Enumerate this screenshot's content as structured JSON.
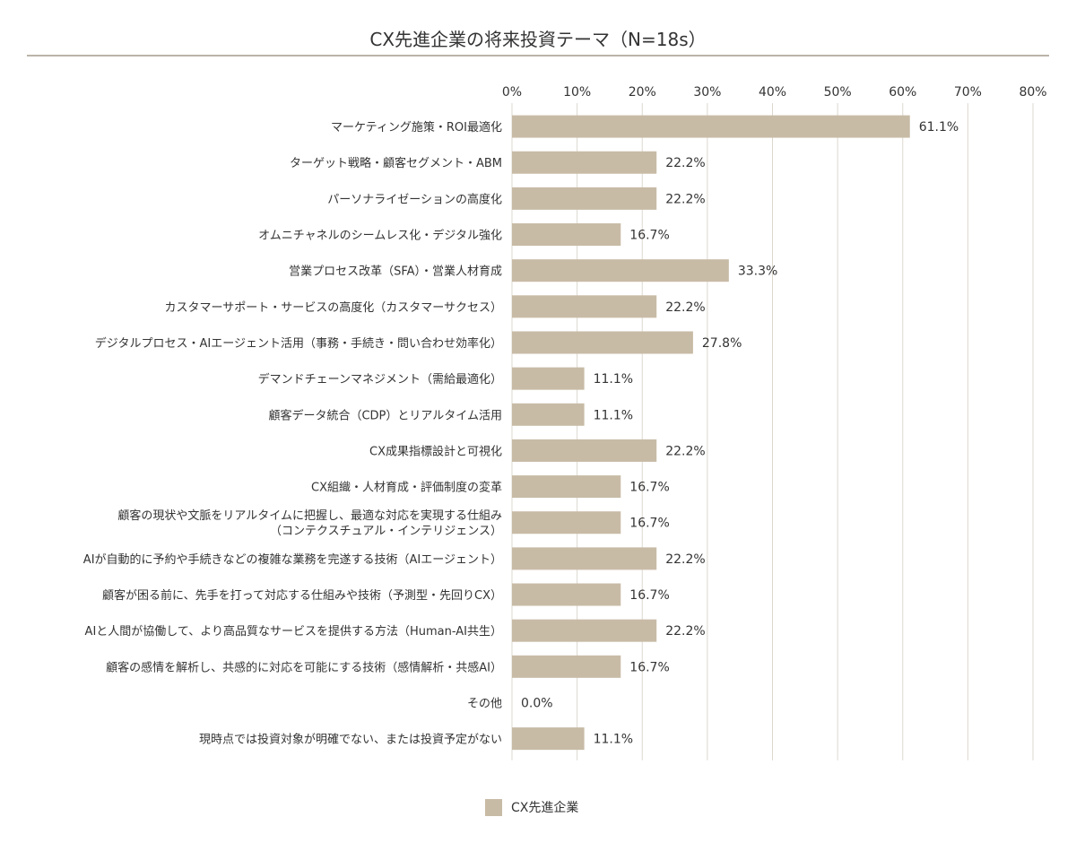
{
  "chart_data": {
    "type": "bar",
    "orientation": "horizontal",
    "title": "CX先進企業の将来投資テーマ（N=18s）",
    "xlim": [
      0,
      80
    ],
    "xticks": [
      "0%",
      "10%",
      "20%",
      "30%",
      "40%",
      "50%",
      "60%",
      "70%",
      "80%"
    ],
    "xtick_values": [
      0,
      10,
      20,
      30,
      40,
      50,
      60,
      70,
      80
    ],
    "grid": true,
    "legend_position": "bottom",
    "bar_color": "#c8bba6",
    "categories": [
      [
        "マーケティング施策・ROI最適化"
      ],
      [
        "ターゲット戦略・顧客セグメント・ABM"
      ],
      [
        "パーソナライゼーションの高度化"
      ],
      [
        "オムニチャネルのシームレス化・デジタル強化"
      ],
      [
        "営業プロセス改革（SFA）・営業人材育成"
      ],
      [
        "カスタマーサポート・サービスの高度化（カスタマーサクセス）"
      ],
      [
        "デジタルプロセス・AIエージェント活用（事務・手続き・問い合わせ効率化）"
      ],
      [
        "デマンドチェーンマネジメント（需給最適化）"
      ],
      [
        "顧客データ統合（CDP）とリアルタイム活用"
      ],
      [
        "CX成果指標設計と可視化"
      ],
      [
        "CX組織・人材育成・評価制度の変革"
      ],
      [
        "顧客の現状や文脈をリアルタイムに把握し、最適な対応を実現する仕組み",
        "（コンテクスチュアル・インテリジェンス）"
      ],
      [
        "AIが自動的に予約や手続きなどの複雑な業務を完遂する技術（AIエージェント）"
      ],
      [
        "顧客が困る前に、先手を打って対応する仕組みや技術（予測型・先回りCX）"
      ],
      [
        "AIと人間が協働して、より高品質なサービスを提供する方法（Human-AI共生）"
      ],
      [
        "顧客の感情を解析し、共感的に対応を可能にする技術（感情解析・共感AI）"
      ],
      [
        "その他"
      ],
      [
        "現時点では投資対象が明確でない、または投資予定がない"
      ]
    ],
    "series": [
      {
        "name": "CX先進企業",
        "values": [
          61.1,
          22.2,
          22.2,
          16.7,
          33.3,
          22.2,
          27.8,
          11.1,
          11.1,
          22.2,
          16.7,
          16.7,
          22.2,
          16.7,
          22.2,
          16.7,
          0.0,
          11.1
        ],
        "labels": [
          "61.1%",
          "22.2%",
          "22.2%",
          "16.7%",
          "33.3%",
          "22.2%",
          "27.8%",
          "11.1%",
          "11.1%",
          "22.2%",
          "16.7%",
          "16.7%",
          "22.2%",
          "16.7%",
          "22.2%",
          "16.7%",
          "0.0%",
          "11.1%"
        ]
      }
    ]
  }
}
